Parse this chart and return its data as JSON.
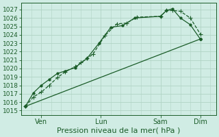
{
  "background_color": "#d0ece4",
  "grid_color": "#b0d4c4",
  "line_color": "#1a5c28",
  "xlabel": "Pression niveau de la mer( hPa )",
  "ylim": [
    1014.5,
    1027.8
  ],
  "yticks": [
    1015,
    1016,
    1017,
    1018,
    1019,
    1020,
    1021,
    1022,
    1023,
    1024,
    1025,
    1026,
    1027
  ],
  "xtick_labels": [
    "Ven",
    "Lun",
    "Sam",
    "Dim"
  ],
  "xtick_positions": [
    1,
    4,
    7,
    9
  ],
  "xlim": [
    0,
    9.8
  ],
  "minor_xtick_step": 0.5,
  "line1_x": [
    0.2,
    0.6,
    1.0,
    1.4,
    1.8,
    2.2,
    2.7,
    3.0,
    3.3,
    3.6,
    4.2,
    4.8,
    5.3,
    5.8,
    7.0,
    7.3,
    7.6,
    8.0,
    8.5,
    9.0
  ],
  "line1_y": [
    1015.5,
    1016.6,
    1017.2,
    1018.0,
    1018.9,
    1019.6,
    1020.2,
    1020.7,
    1021.2,
    1021.7,
    1023.9,
    1025.3,
    1025.4,
    1026.1,
    1026.2,
    1026.9,
    1026.9,
    1026.8,
    1026.0,
    1024.1
  ],
  "line2_x": [
    0.2,
    0.6,
    1.0,
    1.4,
    1.8,
    2.2,
    2.7,
    3.3,
    3.9,
    4.5,
    5.1,
    5.7,
    7.0,
    7.3,
    7.6,
    8.0,
    8.5,
    9.0
  ],
  "line2_y": [
    1015.5,
    1017.1,
    1018.0,
    1018.7,
    1019.4,
    1019.7,
    1020.1,
    1021.2,
    1023.0,
    1024.9,
    1025.1,
    1026.0,
    1026.2,
    1026.9,
    1027.1,
    1026.0,
    1025.2,
    1023.5
  ],
  "line3_x": [
    0.2,
    9.0
  ],
  "line3_y": [
    1015.5,
    1023.5
  ],
  "linewidth": 0.9,
  "marker_size": 3.0,
  "label_fontsize": 7.0,
  "tick_fontsize": 6.5,
  "xlabel_fontsize": 8.0
}
